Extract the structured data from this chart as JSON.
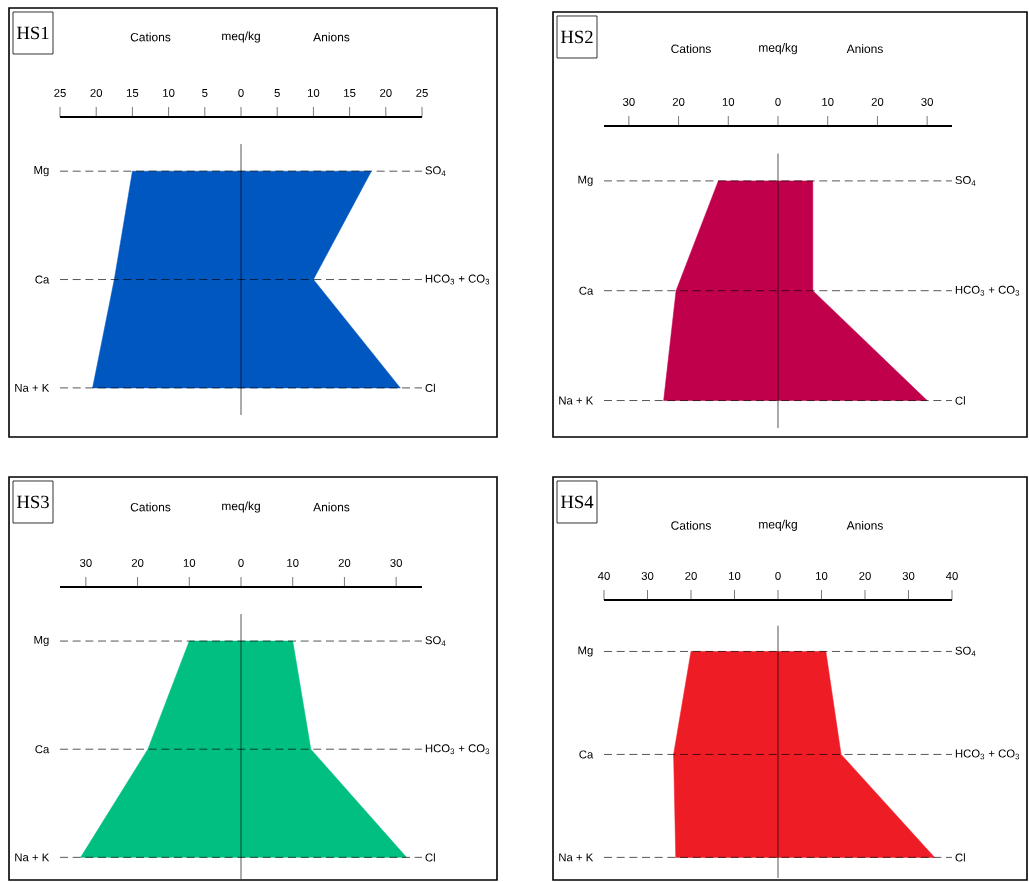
{
  "chart_data": [
    {
      "type": "area",
      "orientation": "horizontal",
      "title": "HS1",
      "xlabel": "meq/kg",
      "categories": [
        "Mg",
        "Ca",
        "Na + K"
      ],
      "y2_categories": [
        "SO$_{4}$",
        "HCO$_{3}$ + CO$_{3}$",
        "Cl"
      ],
      "series": [
        {
          "color": "#0057c0",
          "values": [
            -15,
            -17.5,
            -20.5
          ]
        },
        {
          "color": "#0057c0",
          "values": [
            18,
            10,
            22
          ]
        }
      ],
      "annotations": [
        "Cations",
        "Anions"
      ],
      "xlim": [
        -25,
        25
      ],
      "xticks": [
        {
          "value": -25,
          "label": "25"
        },
        {
          "value": -20,
          "label": "20"
        },
        {
          "value": -15,
          "label": "15"
        },
        {
          "value": -10,
          "label": "10"
        },
        {
          "value": -5,
          "label": "5"
        },
        0,
        5,
        10,
        15,
        20,
        25
      ],
      "ref_lines": [
        {
          "axis": "x",
          "value": 0
        },
        {
          "axis": "y",
          "value": "Mg",
          "line_style": "dashed"
        },
        {
          "axis": "y",
          "value": "Ca",
          "line_style": "dashed"
        },
        {
          "axis": "y",
          "value": "Na + K",
          "line_style": "dashed"
        }
      ]
    },
    {
      "type": "area",
      "orientation": "horizontal",
      "title": "HS2",
      "xlabel": "meq/kg",
      "categories": [
        "Mg",
        "Ca",
        "Na + K"
      ],
      "y2_categories": [
        "SO$_{4}$",
        "HCO$_{3}$ + CO$_{3}$",
        "Cl"
      ],
      "series": [
        {
          "color": "#c0004a",
          "values": [
            -12,
            -20.5,
            -23
          ]
        },
        {
          "color": "#c0004a",
          "values": [
            7,
            7,
            30
          ]
        }
      ],
      "annotations": [
        "Cations",
        "Anions"
      ],
      "xlim": [
        -35,
        35
      ],
      "xticks": [
        {
          "value": -30,
          "label": "30"
        },
        {
          "value": -20,
          "label": "20"
        },
        {
          "value": -10,
          "label": "10"
        },
        0,
        10,
        20,
        30
      ],
      "ref_lines": [
        {
          "axis": "x",
          "value": 0
        },
        {
          "axis": "y",
          "value": "Mg",
          "line_style": "dashed"
        },
        {
          "axis": "y",
          "value": "Ca",
          "line_style": "dashed"
        },
        {
          "axis": "y",
          "value": "Na + K",
          "line_style": "dashed"
        }
      ]
    },
    {
      "type": "area",
      "orientation": "horizontal",
      "title": "HS3",
      "xlabel": "meq/kg",
      "categories": [
        "Mg",
        "Ca",
        "Na + K"
      ],
      "y2_categories": [
        "SO$_{4}$",
        "HCO$_{3}$ + CO$_{3}$",
        "Cl"
      ],
      "series": [
        {
          "color": "#00bf80",
          "values": [
            -10,
            -18,
            -31
          ]
        },
        {
          "color": "#00bf80",
          "values": [
            10,
            13.5,
            32
          ]
        }
      ],
      "annotations": [
        "Cations",
        "Anions"
      ],
      "xlim": [
        -35,
        35
      ],
      "xticks": [
        {
          "value": -30,
          "label": "30"
        },
        {
          "value": -20,
          "label": "20"
        },
        {
          "value": -10,
          "label": "10"
        },
        0,
        10,
        20,
        30
      ],
      "ref_lines": [
        {
          "axis": "x",
          "value": 0
        },
        {
          "axis": "y",
          "value": "Mg",
          "line_style": "dashed"
        },
        {
          "axis": "y",
          "value": "Ca",
          "line_style": "dashed"
        },
        {
          "axis": "y",
          "value": "Na + K",
          "line_style": "dashed"
        }
      ]
    },
    {
      "type": "area",
      "orientation": "horizontal",
      "title": "HS4",
      "xlabel": "meq/kg",
      "categories": [
        "Mg",
        "Ca",
        "Na + K"
      ],
      "y2_categories": [
        "SO$_{4}$",
        "HCO$_{3}$ + CO$_{3}$",
        "Cl"
      ],
      "series": [
        {
          "color": "#ee1c25",
          "values": [
            -20,
            -24,
            -23.5
          ]
        },
        {
          "color": "#ee1c25",
          "values": [
            11,
            14.5,
            36
          ]
        }
      ],
      "annotations": [
        "Cations",
        "Anions"
      ],
      "xlim": [
        -40,
        40
      ],
      "xticks": [
        {
          "value": -40,
          "label": "40"
        },
        {
          "value": -30,
          "label": "30"
        },
        {
          "value": -20,
          "label": "20"
        },
        {
          "value": -10,
          "label": "10"
        },
        0,
        10,
        20,
        30,
        40
      ],
      "ref_lines": [
        {
          "axis": "x",
          "value": 0
        },
        {
          "axis": "y",
          "value": "Mg",
          "line_style": "dashed"
        },
        {
          "axis": "y",
          "value": "Ca",
          "line_style": "dashed"
        },
        {
          "axis": "y",
          "value": "Na + K",
          "line_style": "dashed"
        }
      ]
    }
  ]
}
